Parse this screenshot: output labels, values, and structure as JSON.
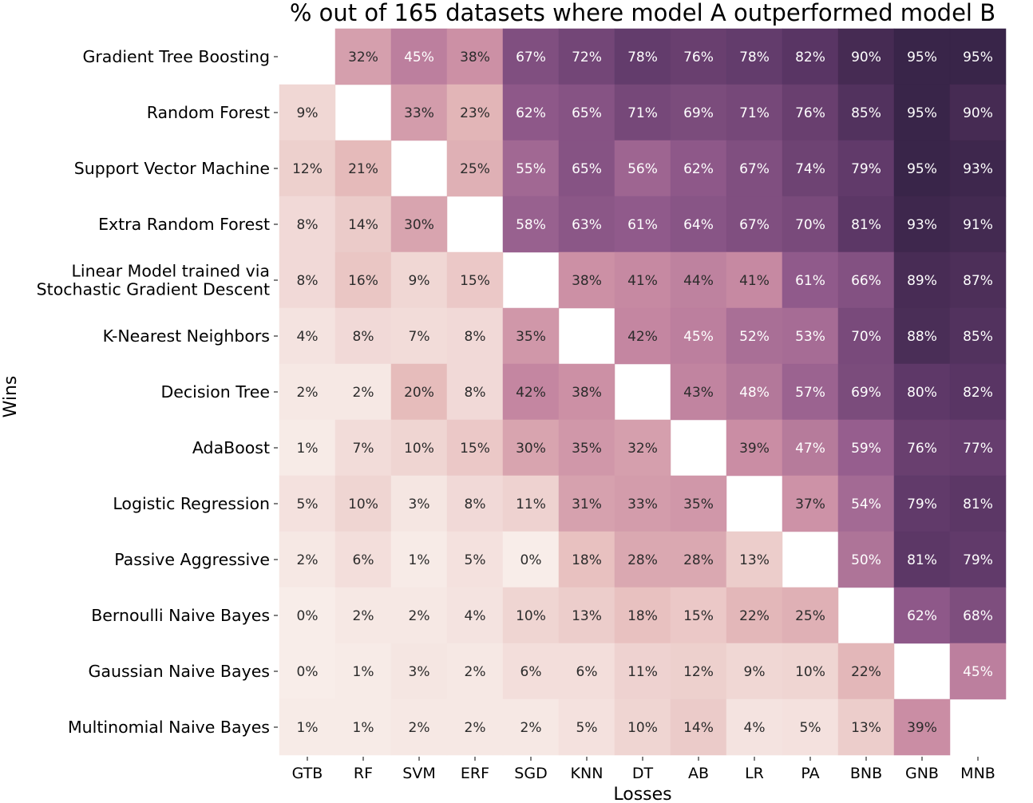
{
  "chart_data": {
    "type": "heatmap",
    "title": "% out of 165 datasets where model A outperformed model B",
    "xlabel": "Losses",
    "ylabel": "Wins",
    "x_categories": [
      "GTB",
      "RF",
      "SVM",
      "ERF",
      "SGD",
      "KNN",
      "DT",
      "AB",
      "LR",
      "PA",
      "BNB",
      "GNB",
      "MNB"
    ],
    "y_categories": [
      [
        "Gradient Tree Boosting"
      ],
      [
        "Random Forest"
      ],
      [
        "Support Vector Machine"
      ],
      [
        "Extra Random Forest"
      ],
      [
        "Linear Model trained via",
        "Stochastic Gradient Descent"
      ],
      [
        "K-Nearest Neighbors"
      ],
      [
        "Decision Tree"
      ],
      [
        "AdaBoost"
      ],
      [
        "Logistic Regression"
      ],
      [
        "Passive Aggressive"
      ],
      [
        "Bernoulli Naive Bayes"
      ],
      [
        "Gaussian Naive Bayes"
      ],
      [
        "Multinomial Naive Bayes"
      ]
    ],
    "values": [
      [
        null,
        32,
        45,
        38,
        67,
        72,
        78,
        76,
        78,
        82,
        90,
        95,
        95
      ],
      [
        9,
        null,
        33,
        23,
        62,
        65,
        71,
        69,
        71,
        76,
        85,
        95,
        90
      ],
      [
        12,
        21,
        null,
        25,
        55,
        65,
        56,
        62,
        67,
        74,
        79,
        95,
        93
      ],
      [
        8,
        14,
        30,
        null,
        58,
        63,
        61,
        64,
        67,
        70,
        81,
        93,
        91
      ],
      [
        8,
        16,
        9,
        15,
        null,
        38,
        41,
        44,
        41,
        61,
        66,
        89,
        87
      ],
      [
        4,
        8,
        7,
        8,
        35,
        null,
        42,
        45,
        52,
        53,
        70,
        88,
        85
      ],
      [
        2,
        2,
        20,
        8,
        42,
        38,
        null,
        43,
        48,
        57,
        69,
        80,
        82
      ],
      [
        1,
        7,
        10,
        15,
        30,
        35,
        32,
        null,
        39,
        47,
        59,
        76,
        77
      ],
      [
        5,
        10,
        3,
        8,
        11,
        31,
        33,
        35,
        null,
        37,
        54,
        79,
        81
      ],
      [
        2,
        6,
        1,
        5,
        0,
        18,
        28,
        28,
        13,
        null,
        50,
        81,
        79
      ],
      [
        0,
        2,
        2,
        4,
        10,
        13,
        18,
        15,
        22,
        25,
        null,
        62,
        68
      ],
      [
        0,
        1,
        3,
        2,
        6,
        6,
        11,
        12,
        9,
        10,
        22,
        null,
        45
      ],
      [
        1,
        1,
        2,
        2,
        2,
        5,
        10,
        14,
        4,
        5,
        13,
        39,
        null
      ]
    ],
    "value_suffix": "%",
    "colormap": [
      "#f8ede9",
      "#e6bcbb",
      "#c98ba3",
      "#935c8d",
      "#5e3868",
      "#2d1e3e"
    ]
  }
}
